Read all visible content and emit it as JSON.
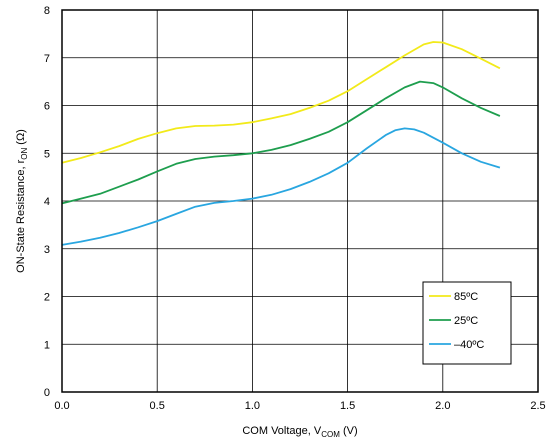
{
  "chart_data": {
    "type": "line",
    "title": "",
    "xlabel": {
      "main": "COM Voltage, V",
      "sub": "COM",
      "unit": " (V)"
    },
    "ylabel": {
      "main": "ON-State Resistance, r",
      "sub": "ON",
      "unit": " (Ω)"
    },
    "xlim": [
      0,
      2.5
    ],
    "ylim": [
      0,
      8
    ],
    "xticks": [
      "0.0",
      "0.5",
      "1.0",
      "1.5",
      "2.0",
      "2.5"
    ],
    "yticks": [
      "0",
      "1",
      "2",
      "3",
      "4",
      "5",
      "6",
      "7",
      "8"
    ],
    "grid": true,
    "legend_position": "bottom-right",
    "series": [
      {
        "name": "85ºC",
        "color": "#f2ea1a",
        "x": [
          0.0,
          0.1,
          0.2,
          0.3,
          0.4,
          0.5,
          0.6,
          0.7,
          0.8,
          0.9,
          1.0,
          1.1,
          1.2,
          1.3,
          1.4,
          1.5,
          1.6,
          1.7,
          1.8,
          1.9,
          1.95,
          2.0,
          2.1,
          2.2,
          2.3
        ],
        "y": [
          4.8,
          4.9,
          5.02,
          5.15,
          5.3,
          5.42,
          5.52,
          5.57,
          5.58,
          5.6,
          5.65,
          5.73,
          5.82,
          5.95,
          6.1,
          6.3,
          6.55,
          6.8,
          7.05,
          7.28,
          7.33,
          7.32,
          7.18,
          6.98,
          6.78
        ]
      },
      {
        "name": "25ºC",
        "color": "#1e9e4e",
        "x": [
          0.0,
          0.1,
          0.2,
          0.3,
          0.4,
          0.5,
          0.6,
          0.7,
          0.8,
          0.9,
          1.0,
          1.1,
          1.2,
          1.3,
          1.4,
          1.5,
          1.6,
          1.7,
          1.8,
          1.88,
          1.95,
          2.0,
          2.1,
          2.2,
          2.3
        ],
        "y": [
          3.95,
          4.05,
          4.15,
          4.3,
          4.45,
          4.62,
          4.78,
          4.88,
          4.93,
          4.96,
          5.0,
          5.07,
          5.17,
          5.3,
          5.45,
          5.65,
          5.9,
          6.15,
          6.38,
          6.5,
          6.47,
          6.38,
          6.15,
          5.95,
          5.78
        ]
      },
      {
        "name": "–40ºC",
        "color": "#29a6e0",
        "x": [
          0.0,
          0.1,
          0.2,
          0.3,
          0.4,
          0.5,
          0.6,
          0.7,
          0.8,
          0.9,
          1.0,
          1.1,
          1.2,
          1.3,
          1.4,
          1.5,
          1.6,
          1.7,
          1.75,
          1.8,
          1.85,
          1.9,
          2.0,
          2.1,
          2.2,
          2.3
        ],
        "y": [
          3.08,
          3.15,
          3.23,
          3.33,
          3.45,
          3.58,
          3.73,
          3.88,
          3.96,
          4.0,
          4.05,
          4.13,
          4.25,
          4.4,
          4.58,
          4.8,
          5.1,
          5.38,
          5.48,
          5.52,
          5.5,
          5.43,
          5.22,
          5.0,
          4.82,
          4.7
        ]
      }
    ]
  }
}
